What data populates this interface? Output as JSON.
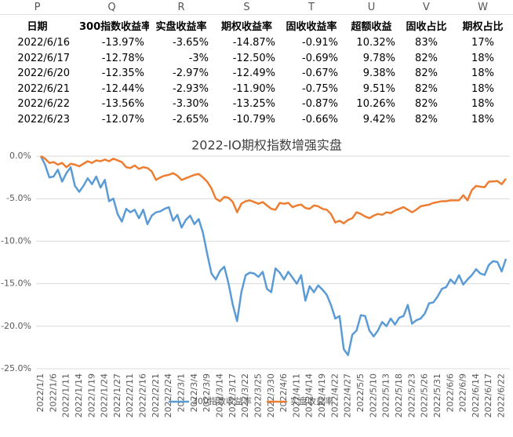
{
  "table": {
    "columns": [
      "P",
      "Q",
      "R",
      "S",
      "T",
      "U",
      "V",
      "W"
    ],
    "header": [
      "日期",
      "300指数收益率",
      "实盘收益率",
      "期权收益率",
      "固收收益率",
      "超额收益",
      "固收占比",
      "期权占比"
    ],
    "rows": [
      [
        "2022/6/16",
        "-13.97%",
        "-3.65%",
        "-14.87%",
        "-0.91%",
        "10.32%",
        "83%",
        "17%"
      ],
      [
        "2022/6/17",
        "-12.78%",
        "-3%",
        "-12.50%",
        "-0.69%",
        "9.78%",
        "82%",
        "18%"
      ],
      [
        "2022/6/20",
        "-12.35%",
        "-2.97%",
        "-12.49%",
        "-0.67%",
        "9.38%",
        "82%",
        "18%"
      ],
      [
        "2022/6/21",
        "-12.44%",
        "-2.93%",
        "-11.90%",
        "-0.75%",
        "9.51%",
        "82%",
        "18%"
      ],
      [
        "2022/6/22",
        "-13.56%",
        "-3.30%",
        "-13.25%",
        "-0.87%",
        "10.26%",
        "82%",
        "18%"
      ],
      [
        "2022/6/23",
        "-12.07%",
        "-2.65%",
        "-10.79%",
        "-0.66%",
        "9.42%",
        "82%",
        "18%"
      ]
    ]
  },
  "chart_data": {
    "type": "line",
    "title": "2022-IO期权指数增强实盘",
    "categories": [
      "2022/1/1",
      null,
      null,
      "2022/1/6",
      null,
      null,
      "2022/1/11",
      null,
      null,
      "2022/1/14",
      null,
      null,
      "2022/1/19",
      null,
      null,
      "2022/1/24",
      null,
      null,
      "2022/1/27",
      null,
      null,
      "2022/2/11",
      null,
      null,
      "2022/2/16",
      null,
      null,
      "2022/2/21",
      null,
      null,
      "2022/2/24",
      null,
      null,
      "2022/3/1",
      null,
      null,
      "2022/3/4",
      null,
      null,
      "2022/3/9",
      null,
      null,
      "2022/3/14",
      null,
      null,
      "2022/3/17",
      null,
      null,
      "2022/3/22",
      null,
      null,
      "2022/3/25",
      null,
      null,
      "2022/3/30",
      null,
      null,
      "2022/4/6",
      null,
      null,
      "2022/4/11",
      null,
      null,
      "2022/4/14",
      null,
      null,
      "2022/4/19",
      null,
      null,
      "2022/4/22",
      null,
      null,
      "2022/4/27",
      null,
      null,
      "2022/5/5",
      null,
      null,
      "2022/5/10",
      null,
      null,
      "2022/5/13",
      null,
      null,
      "2022/5/18",
      null,
      null,
      "2022/5/23",
      null,
      null,
      "2022/5/26",
      null,
      null,
      "2022/5/31",
      null,
      null,
      "2022/6/6",
      null,
      null,
      "2022/6/9",
      null,
      null,
      "2022/6/14",
      null,
      null,
      "2022/6/17",
      null,
      null,
      "2022/6/22",
      null
    ],
    "series": [
      {
        "name": "300指数收益率",
        "color": "#5b9bd5",
        "values": [
          0,
          -1.0,
          -2.5,
          -2.4,
          -1.6,
          -3.0,
          -2.0,
          -1.3,
          -3.5,
          -4.2,
          -3.5,
          -2.6,
          -3.3,
          -2.4,
          -3.7,
          -2.8,
          -5.3,
          -5.0,
          -6.8,
          -7.7,
          -6.2,
          -6.6,
          -6.3,
          -7.3,
          -6.3,
          -8.0,
          -7.0,
          -6.6,
          -6.5,
          -6.2,
          -6.0,
          -7.6,
          -6.9,
          -8.4,
          -7.5,
          -7.0,
          -8.0,
          -7.4,
          -9.0,
          -11.5,
          -13.8,
          -14.5,
          -13.5,
          -13.0,
          -15.0,
          -17.5,
          -19.4,
          -16.0,
          -14.0,
          -13.7,
          -13.8,
          -14.2,
          -13.6,
          -15.6,
          -16.0,
          -13.2,
          -13.7,
          -14.5,
          -13.6,
          -14.3,
          -15.0,
          -14.0,
          -17.0,
          -15.3,
          -16.0,
          -15.2,
          -15.7,
          -16.3,
          -17.5,
          -19.1,
          -18.8,
          -22.7,
          -23.4,
          -21.0,
          -20.5,
          -18.7,
          -18.8,
          -20.5,
          -21.2,
          -20.5,
          -19.5,
          -20.0,
          -19.1,
          -19.8,
          -19.0,
          -18.8,
          -17.5,
          -19.7,
          -19.3,
          -19.1,
          -18.5,
          -17.3,
          -17.2,
          -16.5,
          -15.6,
          -15.4,
          -14.5,
          -15.0,
          -14.0,
          -15.1,
          -14.5,
          -14.0,
          -13.3,
          -13.8,
          -13.97,
          -12.78,
          -12.35,
          -12.44,
          -13.56,
          -12.07
        ]
      },
      {
        "name": "实盘收益率",
        "color": "#ed7d31",
        "values": [
          0,
          -0.3,
          -0.8,
          -0.7,
          -1.0,
          -0.8,
          -1.3,
          -0.9,
          -1.0,
          -1.2,
          -0.9,
          -0.6,
          -0.8,
          -0.5,
          -0.6,
          -0.4,
          -0.6,
          -0.3,
          -0.5,
          -0.7,
          -1.3,
          -1.4,
          -1.1,
          -1.5,
          -1.3,
          -1.4,
          -1.8,
          -2.8,
          -2.5,
          -2.3,
          -2.2,
          -2.0,
          -2.3,
          -2.8,
          -2.6,
          -2.4,
          -2.2,
          -2.1,
          -2.5,
          -3.0,
          -3.8,
          -5.0,
          -5.3,
          -4.8,
          -4.9,
          -5.4,
          -6.6,
          -5.6,
          -5.3,
          -5.2,
          -5.4,
          -5.6,
          -5.4,
          -5.8,
          -6.2,
          -6.3,
          -5.5,
          -5.6,
          -5.5,
          -6.0,
          -5.8,
          -5.7,
          -6.1,
          -6.2,
          -5.8,
          -5.9,
          -6.2,
          -6.3,
          -6.8,
          -7.8,
          -7.6,
          -7.9,
          -7.5,
          -7.3,
          -6.6,
          -6.8,
          -7.1,
          -7.3,
          -7.0,
          -6.8,
          -6.9,
          -6.6,
          -6.7,
          -6.4,
          -6.2,
          -6.0,
          -6.3,
          -6.6,
          -6.3,
          -5.9,
          -5.8,
          -5.7,
          -5.5,
          -5.4,
          -5.3,
          -5.3,
          -5.2,
          -5.2,
          -5.2,
          -4.6,
          -5.2,
          -4.0,
          -3.5,
          -3.6,
          -3.65,
          -3.0,
          -2.97,
          -2.93,
          -3.3,
          -2.65
        ]
      }
    ],
    "ylim": [
      -25,
      0
    ],
    "yticks": [
      {
        "value": 0,
        "label": "0.0%"
      },
      {
        "value": -5,
        "label": "-5.0%"
      },
      {
        "value": -10,
        "label": "-10.0%"
      },
      {
        "value": -15,
        "label": "-15.0%"
      },
      {
        "value": -20,
        "label": "-20.0%"
      },
      {
        "value": -25,
        "label": "-25.0%"
      }
    ],
    "grid": true,
    "legend": "bottom"
  }
}
